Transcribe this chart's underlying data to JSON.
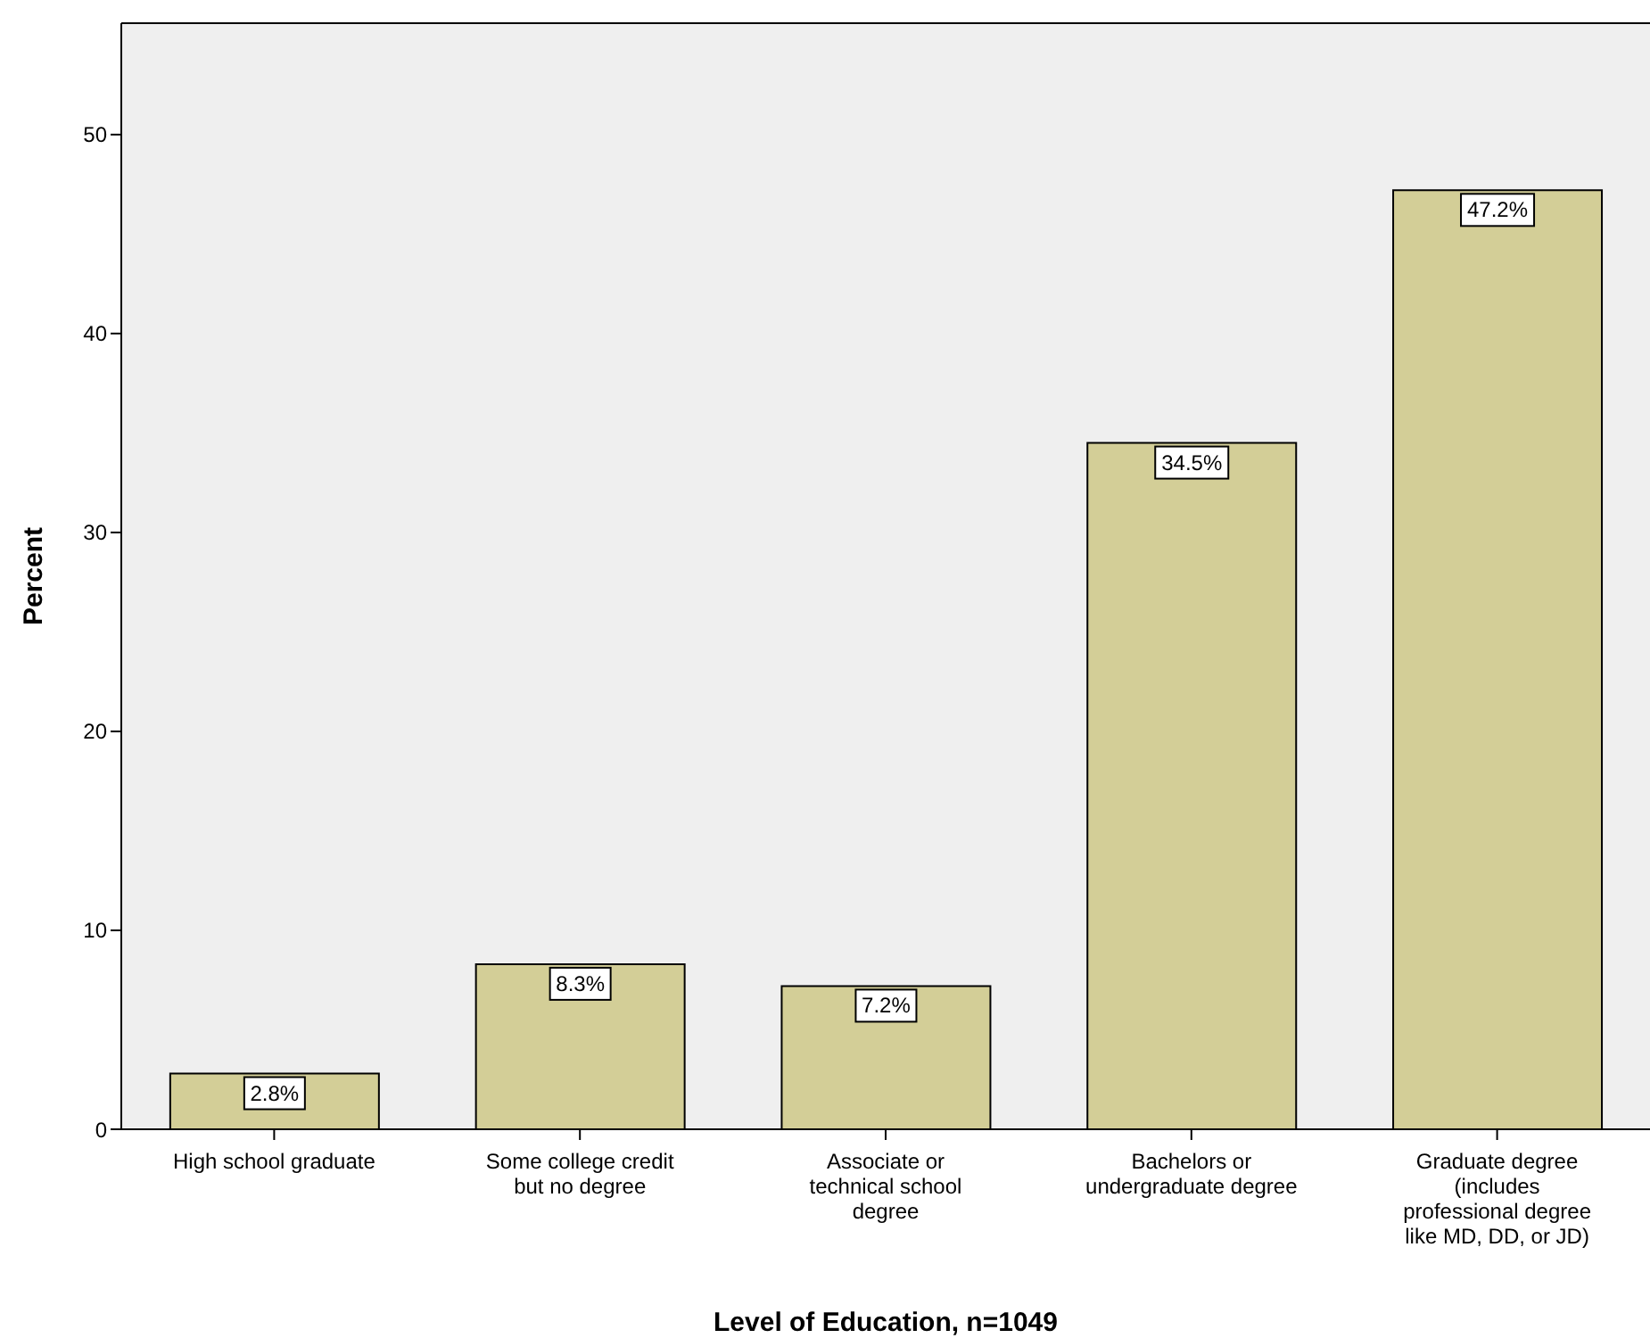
{
  "chart_data": {
    "type": "bar",
    "xlabel": "Level of Education, n=1049",
    "ylabel": "Percent",
    "categories": [
      "High school graduate",
      "Some college credit but no degree",
      "Associate or technical school degree",
      "Bachelors or undergraduate degree",
      "Graduate degree (includes professional degree like MD, DD, or JD)"
    ],
    "values": [
      2.8,
      8.3,
      7.2,
      34.5,
      47.2
    ],
    "value_labels": [
      "2.8%",
      "8.3%",
      "7.2%",
      "34.5%",
      "47.2%"
    ],
    "color": "#d3ce97",
    "ylim": [
      0,
      55.6
    ],
    "yticks": [
      0,
      10,
      20,
      30,
      40,
      50
    ],
    "grid": false
  }
}
